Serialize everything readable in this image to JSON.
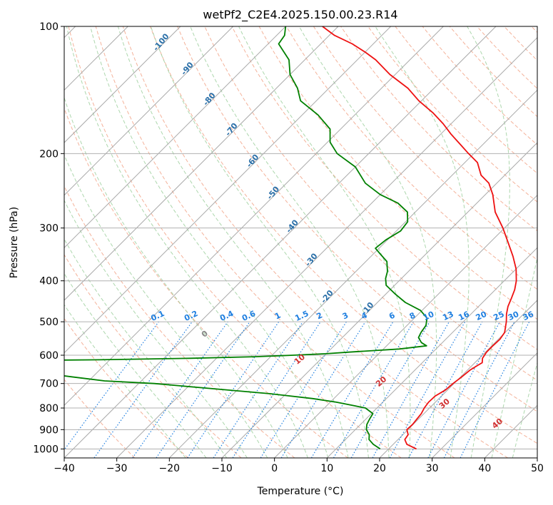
{
  "chart_data": {
    "type": "line",
    "title": "wetPf2_C2E4.2025.150.00.23.R14",
    "xlabel": "Temperature (°C)",
    "ylabel": "Pressure (hPa)",
    "xlim": [
      -40,
      50
    ],
    "ylim": [
      1050,
      100
    ],
    "y_scale": "log",
    "skew": true,
    "grid": true,
    "x_ticks": [
      "−40",
      "−30",
      "−20",
      "−10",
      "0",
      "10",
      "20",
      "30",
      "40",
      "50"
    ],
    "y_ticks": [
      "100",
      "200",
      "300",
      "400",
      "500",
      "600",
      "700",
      "800",
      "900",
      "1000"
    ],
    "series": [
      {
        "role": "temperature",
        "color": "#ee1111",
        "points": [
          [
            1000,
            25.3
          ],
          [
            975,
            22.6
          ],
          [
            950,
            21.3
          ],
          [
            925,
            21.0
          ],
          [
            900,
            19.8
          ],
          [
            875,
            19.9
          ],
          [
            850,
            19.7
          ],
          [
            825,
            19.5
          ],
          [
            800,
            19.0
          ],
          [
            775,
            18.7
          ],
          [
            750,
            18.8
          ],
          [
            725,
            19.6
          ],
          [
            700,
            19.8
          ],
          [
            675,
            20.2
          ],
          [
            650,
            20.5
          ],
          [
            635,
            21.0
          ],
          [
            625,
            21.4
          ],
          [
            610,
            20.6
          ],
          [
            590,
            20.2
          ],
          [
            570,
            20.2
          ],
          [
            550,
            20.3
          ],
          [
            530,
            19.9
          ],
          [
            500,
            18.2
          ],
          [
            480,
            16.8
          ],
          [
            460,
            15.6
          ],
          [
            440,
            14.7
          ],
          [
            420,
            13.7
          ],
          [
            400,
            12.3
          ],
          [
            375,
            10.0
          ],
          [
            350,
            7.0
          ],
          [
            325,
            3.5
          ],
          [
            300,
            -0.3
          ],
          [
            275,
            -4.8
          ],
          [
            250,
            -8.6
          ],
          [
            235,
            -11.5
          ],
          [
            225,
            -14.5
          ],
          [
            210,
            -17.6
          ],
          [
            200,
            -21.0
          ],
          [
            190,
            -24.4
          ],
          [
            180,
            -28.0
          ],
          [
            170,
            -31.5
          ],
          [
            160,
            -35.6
          ],
          [
            150,
            -40.5
          ],
          [
            140,
            -45.0
          ],
          [
            130,
            -51.0
          ],
          [
            120,
            -56.5
          ],
          [
            115,
            -60.0
          ],
          [
            110,
            -64.0
          ],
          [
            105,
            -69.0
          ],
          [
            100,
            -73.0
          ]
        ]
      },
      {
        "role": "dewpoint",
        "color": "#008000",
        "points": [
          [
            1000,
            18.4
          ],
          [
            975,
            16.2
          ],
          [
            950,
            14.5
          ],
          [
            925,
            13.6
          ],
          [
            900,
            12.1
          ],
          [
            875,
            11.2
          ],
          [
            850,
            10.7
          ],
          [
            825,
            10.3
          ],
          [
            800,
            7.8
          ],
          [
            790,
            5.2
          ],
          [
            775,
            1.2
          ],
          [
            760,
            -4.0
          ],
          [
            740,
            -13.0
          ],
          [
            720,
            -25.0
          ],
          [
            700,
            -37.0
          ],
          [
            690,
            -47.0
          ],
          [
            675,
            -54.0
          ],
          [
            660,
            -61.0
          ],
          [
            650,
            -72.0
          ],
          [
            640,
            -87.0
          ],
          [
            630,
            -90.0
          ],
          [
            624,
            -92.0
          ],
          [
            620,
            -85.0
          ],
          [
            615,
            -52.0
          ],
          [
            610,
            -35.0
          ],
          [
            605,
            -23.0
          ],
          [
            600,
            -16.0
          ],
          [
            595,
            -10.0
          ],
          [
            590,
            -6.0
          ],
          [
            585,
            -1.5
          ],
          [
            580,
            3.0
          ],
          [
            570,
            7.6
          ],
          [
            560,
            6.0
          ],
          [
            545,
            4.5
          ],
          [
            530,
            4.0
          ],
          [
            510,
            3.6
          ],
          [
            490,
            2.4
          ],
          [
            470,
            -0.3
          ],
          [
            450,
            -4.7
          ],
          [
            430,
            -8.2
          ],
          [
            410,
            -11.6
          ],
          [
            395,
            -13.0
          ],
          [
            380,
            -14.0
          ],
          [
            360,
            -16.0
          ],
          [
            345,
            -18.8
          ],
          [
            335,
            -20.7
          ],
          [
            320,
            -20.3
          ],
          [
            305,
            -19.2
          ],
          [
            290,
            -19.6
          ],
          [
            275,
            -21.5
          ],
          [
            262,
            -25.0
          ],
          [
            250,
            -30.0
          ],
          [
            235,
            -35.0
          ],
          [
            215,
            -40.0
          ],
          [
            200,
            -46.0
          ],
          [
            188,
            -49.5
          ],
          [
            175,
            -52.0
          ],
          [
            162,
            -57.0
          ],
          [
            150,
            -63.0
          ],
          [
            140,
            -66.0
          ],
          [
            130,
            -70.0
          ],
          [
            120,
            -73.0
          ],
          [
            110,
            -78.0
          ],
          [
            105,
            -78.5
          ],
          [
            100,
            -80.0
          ]
        ]
      }
    ],
    "isotherm_labels": [
      "-100",
      "-90",
      "-80",
      "-70",
      "-60",
      "-50",
      "-40",
      "-30",
      "-20",
      "-10"
    ],
    "moist_adiabat_labels": [
      "0",
      "10",
      "20",
      "30",
      "40"
    ],
    "mixing_ratio_labels": [
      "0.1",
      "0.2",
      "0.4",
      "0.6",
      "1",
      "1.5",
      "2",
      "3",
      "4",
      "6",
      "8",
      "10",
      "13",
      "16",
      "20",
      "25",
      "30",
      "36"
    ],
    "colors": {
      "temperature": "#ee1111",
      "dewpoint": "#008000",
      "isotherm": "#aaaaaa",
      "dry_adiabat": "#f2a488",
      "moist_adiabat": "#9fd09f",
      "mixing_ratio": "#1f7fe0",
      "isotherm_label": "#2a6fa8",
      "moist_label": "#d03030",
      "zero_label": "#888888"
    }
  }
}
